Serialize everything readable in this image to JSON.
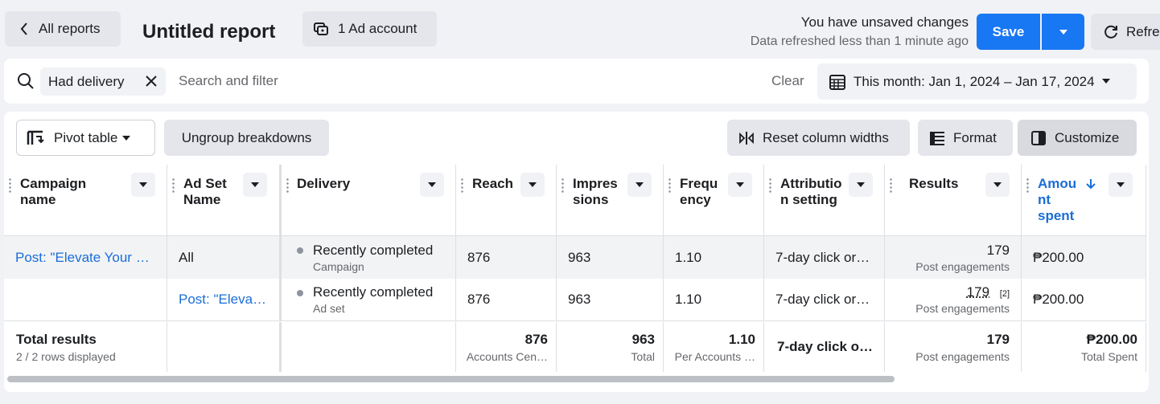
{
  "header": {
    "back_label": "All reports",
    "title": "Untitled report",
    "account_label": "1 Ad account",
    "unsaved": "You have unsaved changes",
    "refreshed": "Data refreshed less than 1 minute ago",
    "save_label": "Save",
    "refresh_label": "Refre"
  },
  "filter": {
    "chip_label": "Had delivery",
    "placeholder": "Search and filter",
    "clear_label": "Clear",
    "date_label": "This month: Jan 1, 2024 – Jan 17, 2024"
  },
  "toolbar": {
    "pivot_label": "Pivot table",
    "ungroup_label": "Ungroup breakdowns",
    "reset_label": "Reset column widths",
    "format_label": "Format",
    "customize_label": "Customize"
  },
  "columns": {
    "campaign": "Campaign\nname",
    "adset": "Ad Set\nName",
    "delivery": "Delivery",
    "reach": "Reach",
    "impressions": "Impres\nsions",
    "frequency": "Frequ\nency",
    "attribution": "Attributio\nn setting",
    "results": "Results",
    "amount": "Amou\nnt\nspent"
  },
  "rows": [
    {
      "campaign": "Post: \"Elevate Your …",
      "adset": "All",
      "delivery": "Recently completed",
      "delivery_sub": "Campaign",
      "reach": "876",
      "impressions": "963",
      "frequency": "1.10",
      "attribution": "7-day click or…",
      "results": "179",
      "results_sub": "Post engagements",
      "amount": "₱200.00"
    },
    {
      "campaign": "",
      "adset": "Post: \"Eleva…",
      "delivery": "Recently completed",
      "delivery_sub": "Ad set",
      "reach": "876",
      "impressions": "963",
      "frequency": "1.10",
      "attribution": "7-day click or…",
      "results": "179",
      "results_note": "[2]",
      "results_sub": "Post engagements",
      "amount": "₱200.00"
    }
  ],
  "totals": {
    "label": "Total results",
    "rows_displayed": "2 / 2 rows displayed",
    "reach": "876",
    "reach_sub": "Accounts Cen…",
    "impressions": "963",
    "impressions_sub": "Total",
    "frequency": "1.10",
    "frequency_sub": "Per Accounts …",
    "attribution": "7-day click o…",
    "results": "179",
    "results_sub": "Post engagements",
    "amount": "₱200.00",
    "amount_sub": "Total Spent"
  },
  "colors": {
    "accent": "#1877f2",
    "link": "#1a6ed8"
  }
}
